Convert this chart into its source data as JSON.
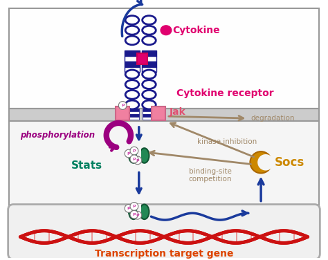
{
  "bg_color": "#ffffff",
  "receptor_color": "#1a1a8c",
  "cytokine_color": "#e0006e",
  "jak_box_color": "#f080a0",
  "phospho_color": "#9b0080",
  "stats_color": "#008060",
  "socs_color": "#cc8800",
  "arrow_blue_color": "#1a3a9c",
  "arrow_tan_color": "#a08868",
  "dna_color": "#cc1111",
  "label_cytokine": "Cytokine",
  "label_receptor": "Cytokine receptor",
  "label_jak": "Jak",
  "label_phospho": "phosphorylation",
  "label_stats": "Stats",
  "label_socs": "Socs",
  "label_transcription": "Transcription target gene",
  "label_degradation": "degradation",
  "label_kinase": "kinase inhibition",
  "label_binding": "binding-site\ncompetition",
  "figsize": [
    4.74,
    3.76
  ],
  "dpi": 100
}
